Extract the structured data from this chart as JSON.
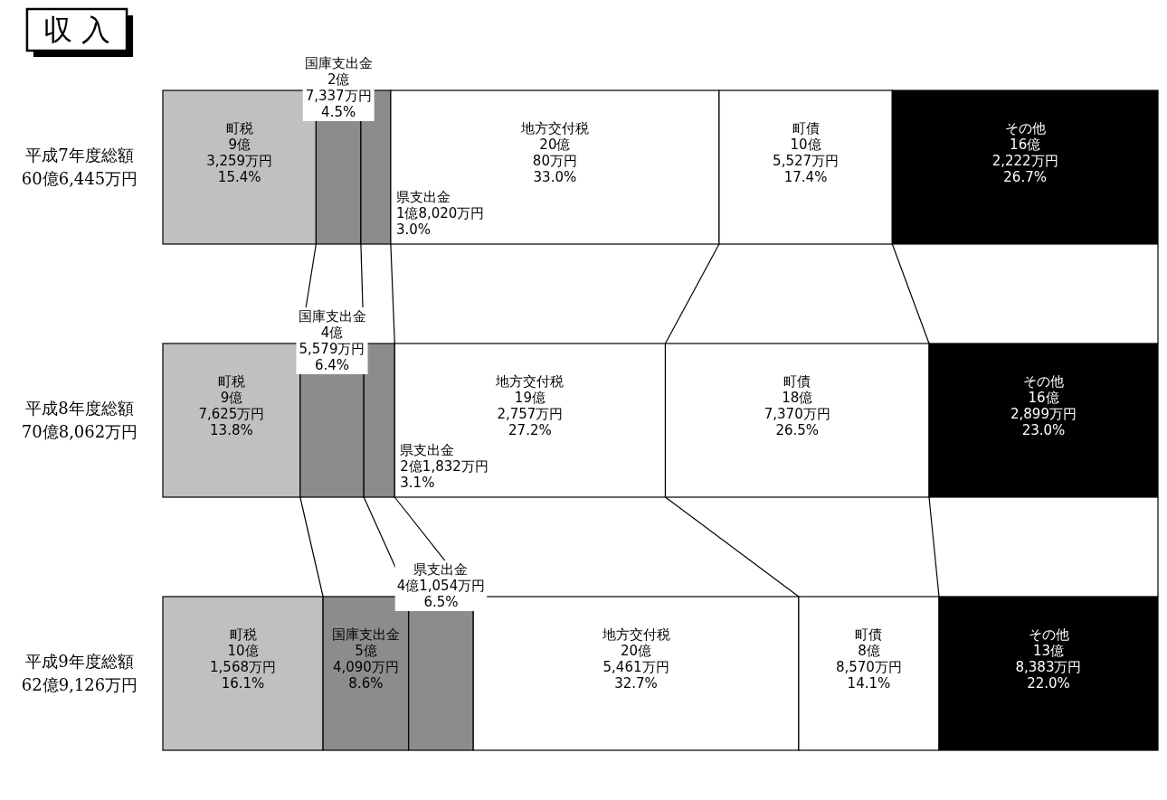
{
  "chart_data": {
    "type": "bar",
    "orientation": "horizontal",
    "stacked": true,
    "title": "収 入",
    "categories": [
      "平成7年度総額60億6,445万円",
      "平成8年度総額70億8,062万円",
      "平成9年度総額62億9,126万円"
    ],
    "series": [
      {
        "name": "町税",
        "color": "#c0c0c0",
        "values": [
          15.4,
          13.8,
          16.1
        ],
        "value_labels": [
          "9億\n3,259万円\n15.4%",
          "9億\n7,625万円\n13.8%",
          "10億\n1,568万円\n16.1%"
        ]
      },
      {
        "name": "国庫支出金",
        "color": "#8c8c8c",
        "values": [
          4.5,
          6.4,
          8.6
        ],
        "value_labels": [
          "2億\n7,337万円\n4.5%",
          "4億\n5,579万円\n6.4%",
          "5億\n4,090万円\n8.6%"
        ]
      },
      {
        "name": "県支出金",
        "color": "#8c8c8c",
        "values": [
          3.0,
          3.1,
          6.5
        ],
        "value_labels": [
          "1億8,020万円\n3.0%",
          "2億1,832万円\n3.1%",
          "4億1,054万円\n6.5%"
        ]
      },
      {
        "name": "地方交付税",
        "color": "#ffffff",
        "values": [
          33.0,
          27.2,
          32.7
        ],
        "value_labels": [
          "20億\n80万円\n33.0%",
          "19億\n2,757万円\n27.2%",
          "20億\n5,461万円\n32.7%"
        ]
      },
      {
        "name": "町債",
        "color": "#ffffff",
        "values": [
          17.4,
          26.5,
          14.1
        ],
        "value_labels": [
          "10億\n5,527万円\n17.4%",
          "18億\n7,370万円\n26.5%",
          "8億\n8,570万円\n14.1%"
        ]
      },
      {
        "name": "その他",
        "color": "#000000",
        "values": [
          26.7,
          23.0,
          22.0
        ],
        "value_labels": [
          "16億\n2,222万円\n26.7%",
          "16億\n2,899万円\n23.0%",
          "13億\n8,383万円\n22.0%"
        ]
      }
    ]
  }
}
